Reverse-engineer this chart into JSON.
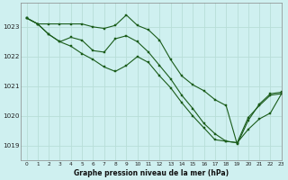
{
  "title": "Graphe pression niveau de la mer (hPa)",
  "bg_color": "#cff0f0",
  "grid_color": "#b8ddd8",
  "line_color": "#1a5c1a",
  "xlim": [
    -0.5,
    23
  ],
  "ylim": [
    1018.5,
    1023.8
  ],
  "yticks": [
    1019,
    1020,
    1021,
    1022,
    1023
  ],
  "xticks": [
    0,
    1,
    2,
    3,
    4,
    5,
    6,
    7,
    8,
    9,
    10,
    11,
    12,
    13,
    14,
    15,
    16,
    17,
    18,
    19,
    20,
    21,
    22,
    23
  ],
  "series": [
    [
      1023.3,
      1023.1,
      1023.1,
      1023.1,
      1023.1,
      1023.1,
      1023.0,
      1022.95,
      1023.05,
      1023.4,
      1023.05,
      1022.9,
      1022.55,
      1021.9,
      1021.35,
      1021.05,
      1020.85,
      1020.55,
      1020.35,
      1019.05,
      1019.85,
      1020.4,
      1020.75,
      1020.8
    ],
    [
      1023.3,
      1023.1,
      1022.75,
      1022.5,
      1022.65,
      1022.55,
      1022.2,
      1022.15,
      1022.6,
      1022.7,
      1022.5,
      1022.15,
      1021.7,
      1021.25,
      1020.7,
      1020.25,
      1019.75,
      1019.4,
      1019.15,
      1019.1,
      1019.95,
      1020.35,
      1020.7,
      1020.75
    ],
    [
      1023.3,
      1023.1,
      1022.75,
      1022.5,
      1022.35,
      1022.1,
      1021.9,
      1021.65,
      1021.5,
      1021.7,
      1022.0,
      1021.8,
      1021.35,
      1020.95,
      1020.45,
      1020.0,
      1019.6,
      1019.2,
      1019.15,
      1019.1,
      1019.55,
      1019.9,
      1020.1,
      1020.75
    ]
  ]
}
